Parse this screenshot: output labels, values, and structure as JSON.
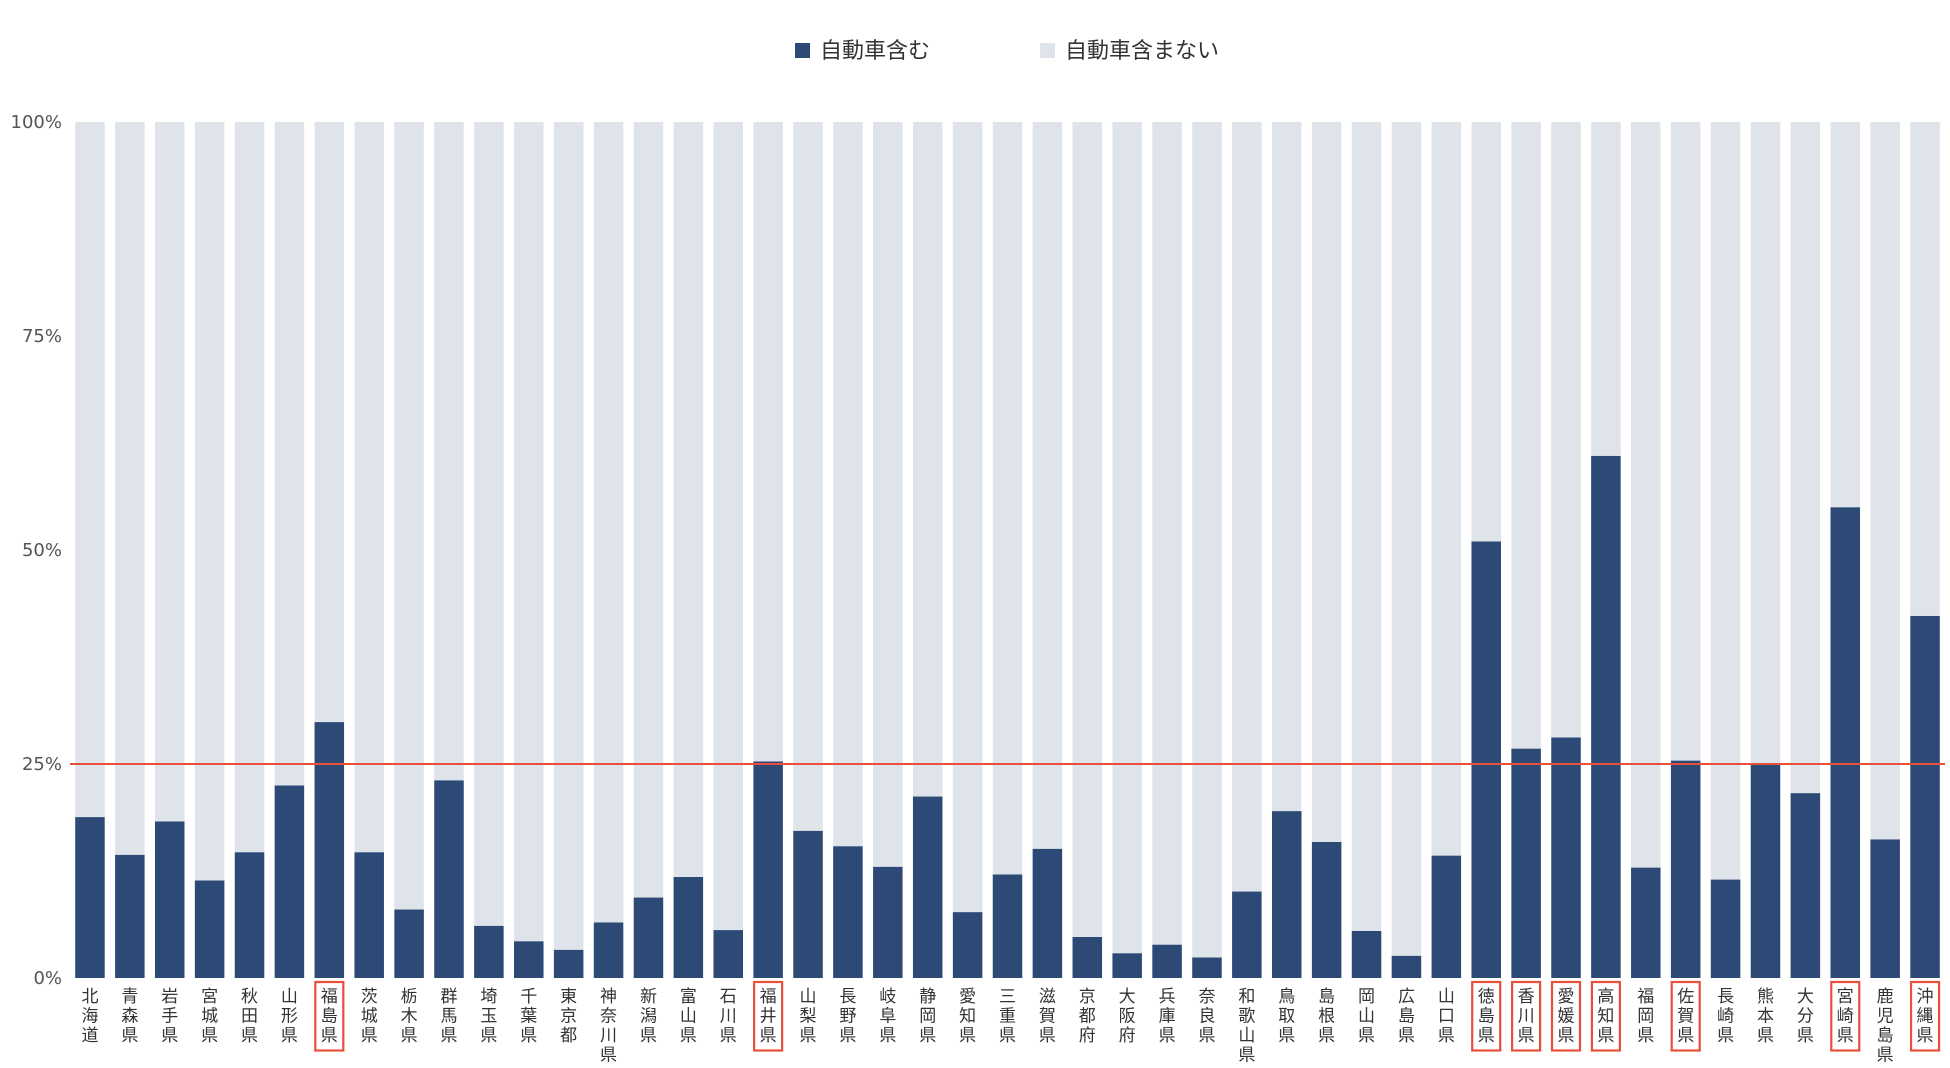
{
  "chart_data": {
    "type": "bar",
    "stacked": true,
    "normalized": true,
    "title": "",
    "xlabel": "",
    "ylabel": "",
    "ylim": [
      0,
      100
    ],
    "yticks": [
      0,
      25,
      50,
      75,
      100
    ],
    "ytick_labels": [
      "0%",
      "25%",
      "50%",
      "75%",
      "100%"
    ],
    "legend_position": "top-center",
    "grid": false,
    "reference_line": {
      "value": 25,
      "color": "#E8503A"
    },
    "categories": [
      "北海道",
      "青森県",
      "岩手県",
      "宮城県",
      "秋田県",
      "山形県",
      "福島県",
      "茨城県",
      "栃木県",
      "群馬県",
      "埼玉県",
      "千葉県",
      "東京都",
      "神奈川県",
      "新潟県",
      "富山県",
      "石川県",
      "福井県",
      "山梨県",
      "長野県",
      "岐阜県",
      "静岡県",
      "愛知県",
      "三重県",
      "滋賀県",
      "京都府",
      "大阪府",
      "兵庫県",
      "奈良県",
      "和歌山県",
      "鳥取県",
      "島根県",
      "岡山県",
      "広島県",
      "山口県",
      "徳島県",
      "香川県",
      "愛媛県",
      "高知県",
      "福岡県",
      "佐賀県",
      "長崎県",
      "熊本県",
      "大分県",
      "宮崎県",
      "鹿児島県",
      "沖縄県"
    ],
    "highlighted": [
      "福島県",
      "福井県",
      "徳島県",
      "香川県",
      "愛媛県",
      "高知県",
      "佐賀県",
      "宮崎県",
      "沖縄県"
    ],
    "series": [
      {
        "name": "自動車含む",
        "color": "#2D4A77",
        "values": [
          18.8,
          14.4,
          18.3,
          11.4,
          14.7,
          22.5,
          29.9,
          14.7,
          8.0,
          23.1,
          6.1,
          4.3,
          3.3,
          6.5,
          9.4,
          11.8,
          5.6,
          25.3,
          17.2,
          15.4,
          13.0,
          21.2,
          7.7,
          12.1,
          15.1,
          4.8,
          2.9,
          3.9,
          2.4,
          10.1,
          19.5,
          15.9,
          5.5,
          2.6,
          14.3,
          51.0,
          26.8,
          28.1,
          61.0,
          12.9,
          25.4,
          11.5,
          25.0,
          21.6,
          55.0,
          16.2,
          42.3
        ]
      },
      {
        "name": "自動車含まない",
        "color": "#DFE3EA",
        "values": [
          81.2,
          85.6,
          81.7,
          88.6,
          85.3,
          77.5,
          70.1,
          85.3,
          92.0,
          76.9,
          93.9,
          95.7,
          96.7,
          93.5,
          90.6,
          88.2,
          94.4,
          74.7,
          82.8,
          84.6,
          87.0,
          78.8,
          92.3,
          87.9,
          84.9,
          95.2,
          97.1,
          96.1,
          97.6,
          89.9,
          80.5,
          84.1,
          94.5,
          97.4,
          85.7,
          49.0,
          73.2,
          71.9,
          39.0,
          87.1,
          74.6,
          88.5,
          75.0,
          78.4,
          45.0,
          83.8,
          57.7
        ]
      }
    ]
  }
}
